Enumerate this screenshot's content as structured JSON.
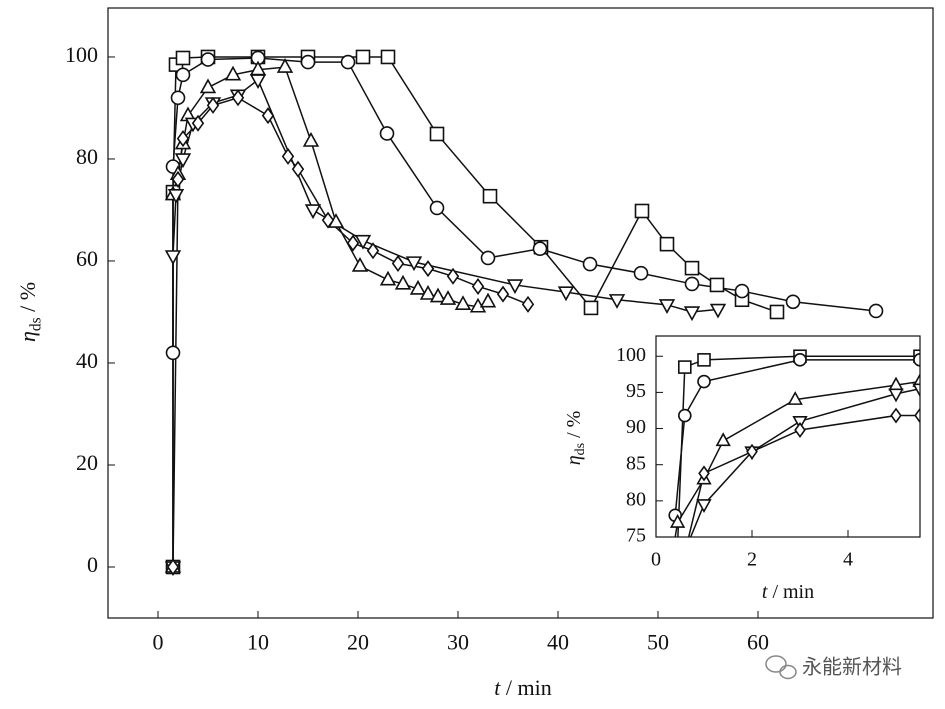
{
  "chart_data": [
    {
      "type": "line",
      "xlabel": [
        "t",
        " / min"
      ],
      "ylabel": [
        "η",
        "ds",
        " / %"
      ],
      "xlim": [
        -5,
        77.5
      ],
      "ylim": [
        -10,
        109.6
      ],
      "xticks": [
        0,
        10,
        20,
        30,
        40,
        50,
        60
      ],
      "yticks": [
        0,
        20,
        40,
        60,
        80,
        100
      ],
      "color": "#111111",
      "series": [
        {
          "marker": "square",
          "x": [
            1.5,
            1.5,
            1.8,
            2.5,
            5,
            10,
            15,
            20.5,
            23,
            27.9,
            33.2,
            38.3,
            43.3,
            48.4,
            50.9,
            53.4,
            55.9,
            58.4,
            61.9
          ],
          "values": [
            0,
            73.5,
            98.5,
            99.8,
            100,
            100,
            100,
            100,
            100,
            84.9,
            72.7,
            62.7,
            50.8,
            69.8,
            63.3,
            58.6,
            55.3,
            52.4,
            50
          ]
        },
        {
          "marker": "circle",
          "x": [
            1.5,
            1.5,
            2,
            2.5,
            5,
            10,
            15,
            19,
            22.9,
            27.9,
            33,
            38.2,
            43.2,
            48.3,
            53.4,
            58.4,
            63.5,
            71.8
          ],
          "values": [
            42,
            78.5,
            92,
            96.5,
            99.5,
            99.8,
            99,
            99,
            85,
            70.4,
            60.6,
            62.4,
            59.4,
            57.6,
            55.5,
            54.1,
            52,
            50.2
          ]
        },
        {
          "marker": "triangle-up",
          "x": [
            1.5,
            1.5,
            2,
            2.5,
            3,
            5,
            7.5,
            10,
            12.7,
            15.3,
            17.8,
            20.2,
            23,
            24.5,
            26,
            27,
            28,
            29,
            30.5,
            32,
            33
          ],
          "values": [
            0,
            73,
            77,
            83,
            88.5,
            94,
            96.5,
            97.5,
            98,
            83.5,
            67.6,
            59,
            56.3,
            55.5,
            54.5,
            53.5,
            53,
            52.5,
            51.5,
            51,
            52
          ]
        },
        {
          "marker": "triangle-down",
          "x": [
            1.5,
            1.5,
            1.8,
            2.5,
            3.5,
            5.5,
            8,
            10,
            15.5,
            20.5,
            25.6,
            35.7,
            40.8,
            45.9,
            50.9,
            53.4,
            56
          ],
          "values": [
            0,
            61,
            73,
            80,
            87,
            91,
            92.5,
            95.5,
            70,
            64,
            59.8,
            55.3,
            53.9,
            52.4,
            51.4,
            50,
            50.5
          ]
        },
        {
          "marker": "diamond",
          "x": [
            1.5,
            2,
            2.5,
            4,
            5.5,
            8,
            11,
            13,
            14,
            17,
            19.5,
            21.5,
            24,
            27,
            29.5,
            32,
            34.5,
            37
          ],
          "values": [
            0,
            76,
            84,
            87,
            90.5,
            92,
            88.5,
            80.5,
            78,
            68,
            63.5,
            62,
            59.5,
            58.5,
            57,
            55,
            53.5,
            51.5
          ]
        }
      ]
    },
    {
      "type": "line",
      "xlabel": [
        "t",
        " / min"
      ],
      "ylabel": [
        "η",
        "ds",
        " / %"
      ],
      "xlim": [
        0,
        5.5
      ],
      "ylim": [
        75,
        102.8
      ],
      "xticks": [
        0,
        2,
        4
      ],
      "yticks": [
        75,
        80,
        85,
        90,
        95,
        100
      ],
      "color": "#111111",
      "series": [
        {
          "marker": "square",
          "x": [
            0.45,
            0.6,
            1,
            3,
            5.5
          ],
          "values": [
            74,
            98.5,
            99.5,
            100,
            100
          ]
        },
        {
          "marker": "circle",
          "x": [
            0.4,
            0.6,
            1,
            3,
            5.5
          ],
          "values": [
            78,
            91.8,
            96.5,
            99.5,
            99.5
          ]
        },
        {
          "marker": "triangle-up",
          "x": [
            0.35,
            0.45,
            1,
            1.4,
            2.9,
            5,
            5.5
          ],
          "values": [
            73,
            77,
            83,
            88.3,
            94,
            96,
            96.5
          ]
        },
        {
          "marker": "triangle-down",
          "x": [
            0.6,
            1,
            2,
            3,
            5,
            5.5
          ],
          "values": [
            73,
            79.5,
            86.8,
            91,
            94.8,
            95.5
          ]
        },
        {
          "marker": "diamond",
          "x": [
            0.5,
            1,
            2,
            3,
            5,
            5.5
          ],
          "values": [
            70,
            83.8,
            86.8,
            89.8,
            91.8,
            91.8
          ]
        }
      ]
    }
  ],
  "watermark": "永能新材料"
}
